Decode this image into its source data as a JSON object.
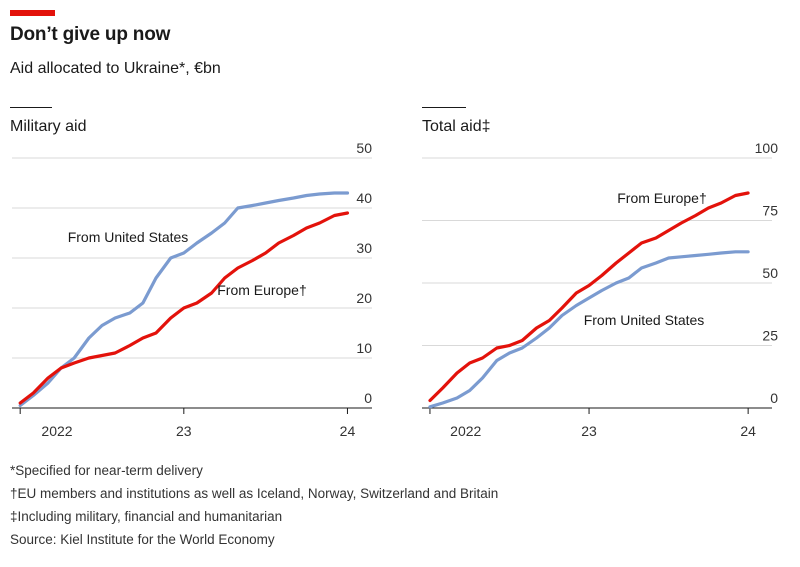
{
  "header": {
    "title": "Don’t give up now",
    "subtitle": "Aid allocated to Ukraine*, €bn",
    "accent_color": "#e3120b"
  },
  "footnotes": [
    "*Specified for near-term delivery",
    "†EU members and institutions as well as Iceland, Norway, Switzerland and Britain",
    "‡Including military, financial and humanitarian",
    "Source: Kiel Institute for the World Economy"
  ],
  "chart_data": [
    {
      "type": "line",
      "title": "Military aid",
      "x_ticks": [
        "2022",
        "23",
        "24"
      ],
      "x_tick_values": [
        2022.0,
        2023.0,
        2024.0
      ],
      "xlim": [
        2021.95,
        2024.15
      ],
      "ylim": [
        0,
        50
      ],
      "y_ticks": [
        "0",
        "10",
        "20",
        "30",
        "40",
        "50"
      ],
      "y_tick_values": [
        0,
        10,
        20,
        30,
        40,
        50
      ],
      "grid": true,
      "series": [
        {
          "name": "From United States",
          "color": "#7b9bd0",
          "x": [
            2022.0,
            2022.08,
            2022.17,
            2022.25,
            2022.33,
            2022.42,
            2022.5,
            2022.58,
            2022.67,
            2022.75,
            2022.83,
            2022.92,
            2023.0,
            2023.08,
            2023.17,
            2023.25,
            2023.33,
            2023.42,
            2023.5,
            2023.58,
            2023.67,
            2023.75,
            2023.83,
            2023.92,
            2024.0
          ],
          "y": [
            0.5,
            2.5,
            5,
            8,
            10,
            14,
            16.5,
            18,
            19,
            21,
            26,
            30,
            31,
            33,
            35,
            37,
            40,
            40.5,
            41,
            41.5,
            42,
            42.5,
            42.8,
            43,
            43
          ]
        },
        {
          "name": "From Europe†",
          "color": "#e3120b",
          "x": [
            2022.0,
            2022.08,
            2022.17,
            2022.25,
            2022.33,
            2022.42,
            2022.5,
            2022.58,
            2022.67,
            2022.75,
            2022.83,
            2022.92,
            2023.0,
            2023.08,
            2023.17,
            2023.25,
            2023.33,
            2023.42,
            2023.5,
            2023.58,
            2023.67,
            2023.75,
            2023.83,
            2023.92,
            2024.0
          ],
          "y": [
            1,
            3,
            6,
            8,
            9,
            10,
            10.5,
            11,
            12.5,
            14,
            15,
            18,
            20,
            21,
            23,
            26,
            28,
            29.5,
            31,
            33,
            34.5,
            36,
            37,
            38.5,
            39
          ]
        }
      ],
      "labels": [
        "From United States",
        "From Europe†"
      ]
    },
    {
      "type": "line",
      "title": "Total aid‡",
      "x_ticks": [
        "2022",
        "23",
        "24"
      ],
      "x_tick_values": [
        2022.0,
        2023.0,
        2024.0
      ],
      "xlim": [
        2021.95,
        2024.15
      ],
      "ylim": [
        0,
        100
      ],
      "y_ticks": [
        "0",
        "25",
        "50",
        "75",
        "100"
      ],
      "y_tick_values": [
        0,
        25,
        50,
        75,
        100
      ],
      "grid": true,
      "series": [
        {
          "name": "From Europe†",
          "color": "#e3120b",
          "x": [
            2022.0,
            2022.08,
            2022.17,
            2022.25,
            2022.33,
            2022.42,
            2022.5,
            2022.58,
            2022.67,
            2022.75,
            2022.83,
            2022.92,
            2023.0,
            2023.08,
            2023.17,
            2023.25,
            2023.33,
            2023.42,
            2023.5,
            2023.58,
            2023.67,
            2023.75,
            2023.83,
            2023.92,
            2024.0
          ],
          "y": [
            3,
            8,
            14,
            18,
            20,
            24,
            25,
            27,
            32,
            35,
            40,
            46,
            49,
            53,
            58,
            62,
            66,
            68,
            71,
            74,
            77,
            80,
            82,
            85,
            86
          ]
        },
        {
          "name": "From United States",
          "color": "#7b9bd0",
          "x": [
            2022.0,
            2022.08,
            2022.17,
            2022.25,
            2022.33,
            2022.42,
            2022.5,
            2022.58,
            2022.67,
            2022.75,
            2022.83,
            2022.92,
            2023.0,
            2023.08,
            2023.17,
            2023.25,
            2023.33,
            2023.42,
            2023.5,
            2023.58,
            2023.67,
            2023.75,
            2023.83,
            2023.92,
            2024.0
          ],
          "y": [
            0.5,
            2,
            4,
            7,
            12,
            19,
            22,
            24,
            28,
            32,
            37,
            41,
            44,
            47,
            50,
            52,
            56,
            58,
            60,
            60.5,
            61,
            61.5,
            62,
            62.5,
            62.5
          ]
        }
      ],
      "labels": [
        "From Europe†",
        "From United States"
      ]
    }
  ]
}
